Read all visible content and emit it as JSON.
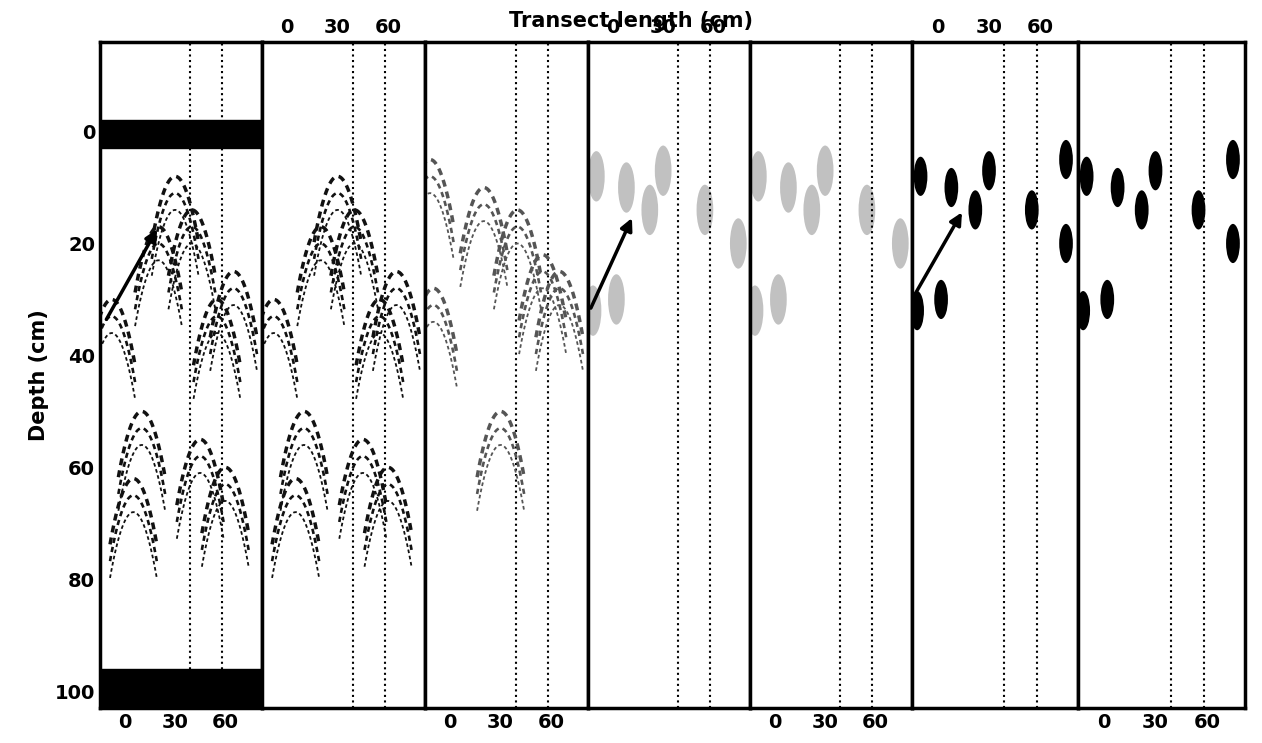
{
  "chart_data": {
    "type": "radargram",
    "title": "Transect length (cm)",
    "ylabel": "Depth (cm)",
    "xlim": [
      -15,
      82
    ],
    "ylim": [
      103,
      -16
    ],
    "xticks": [
      0,
      30,
      60
    ],
    "yticks": [
      0,
      20,
      40,
      60,
      80,
      100
    ],
    "dotted_lines_x": [
      39,
      58
    ],
    "panels": [
      {
        "type": "hyperbola",
        "color": "#111111",
        "x": [
          -8,
          20,
          40,
          55,
          10,
          45,
          30,
          65,
          5,
          60
        ],
        "y": [
          30,
          17,
          14,
          30,
          50,
          55,
          8,
          25,
          62,
          60
        ],
        "bands": [
          [
            -2,
            3
          ],
          [
            96,
            103
          ]
        ],
        "arrow": {
          "from": [
            -12,
            34
          ],
          "to": [
            20,
            17
          ]
        }
      },
      {
        "type": "hyperbola",
        "color": "#111111",
        "x": [
          -8,
          20,
          40,
          55,
          10,
          45,
          30,
          65,
          5,
          60
        ],
        "y": [
          30,
          17,
          14,
          30,
          50,
          55,
          8,
          25,
          62,
          60
        ]
      },
      {
        "type": "hyperbola",
        "color": "#555555",
        "x": [
          -10,
          20,
          40,
          55,
          30,
          65,
          -12
        ],
        "y": [
          28,
          10,
          14,
          22,
          50,
          25,
          5
        ]
      },
      {
        "type": "blur",
        "color": "#777777",
        "x": [
          -10,
          8,
          22,
          30,
          -12,
          2,
          55,
          75
        ],
        "y": [
          8,
          10,
          14,
          7,
          32,
          30,
          14,
          20
        ],
        "arrow": {
          "from": [
            -14,
            32
          ],
          "to": [
            12,
            15
          ]
        }
      },
      {
        "type": "blur",
        "color": "#777777",
        "x": [
          -10,
          8,
          22,
          30,
          -12,
          2,
          55,
          75
        ],
        "y": [
          8,
          10,
          14,
          7,
          32,
          30,
          14,
          20
        ]
      },
      {
        "type": "blob",
        "color": "#000000",
        "x": [
          -10,
          8,
          22,
          30,
          -12,
          2,
          55,
          75,
          75
        ],
        "y": [
          8,
          10,
          14,
          7,
          32,
          30,
          14,
          5,
          20
        ],
        "arrow": {
          "from": [
            -15,
            30
          ],
          "to": [
            15,
            14
          ]
        }
      },
      {
        "type": "blob",
        "color": "#000000",
        "x": [
          -10,
          8,
          22,
          30,
          -12,
          2,
          55,
          75,
          75
        ],
        "y": [
          8,
          10,
          14,
          7,
          32,
          30,
          14,
          5,
          20
        ]
      }
    ]
  }
}
